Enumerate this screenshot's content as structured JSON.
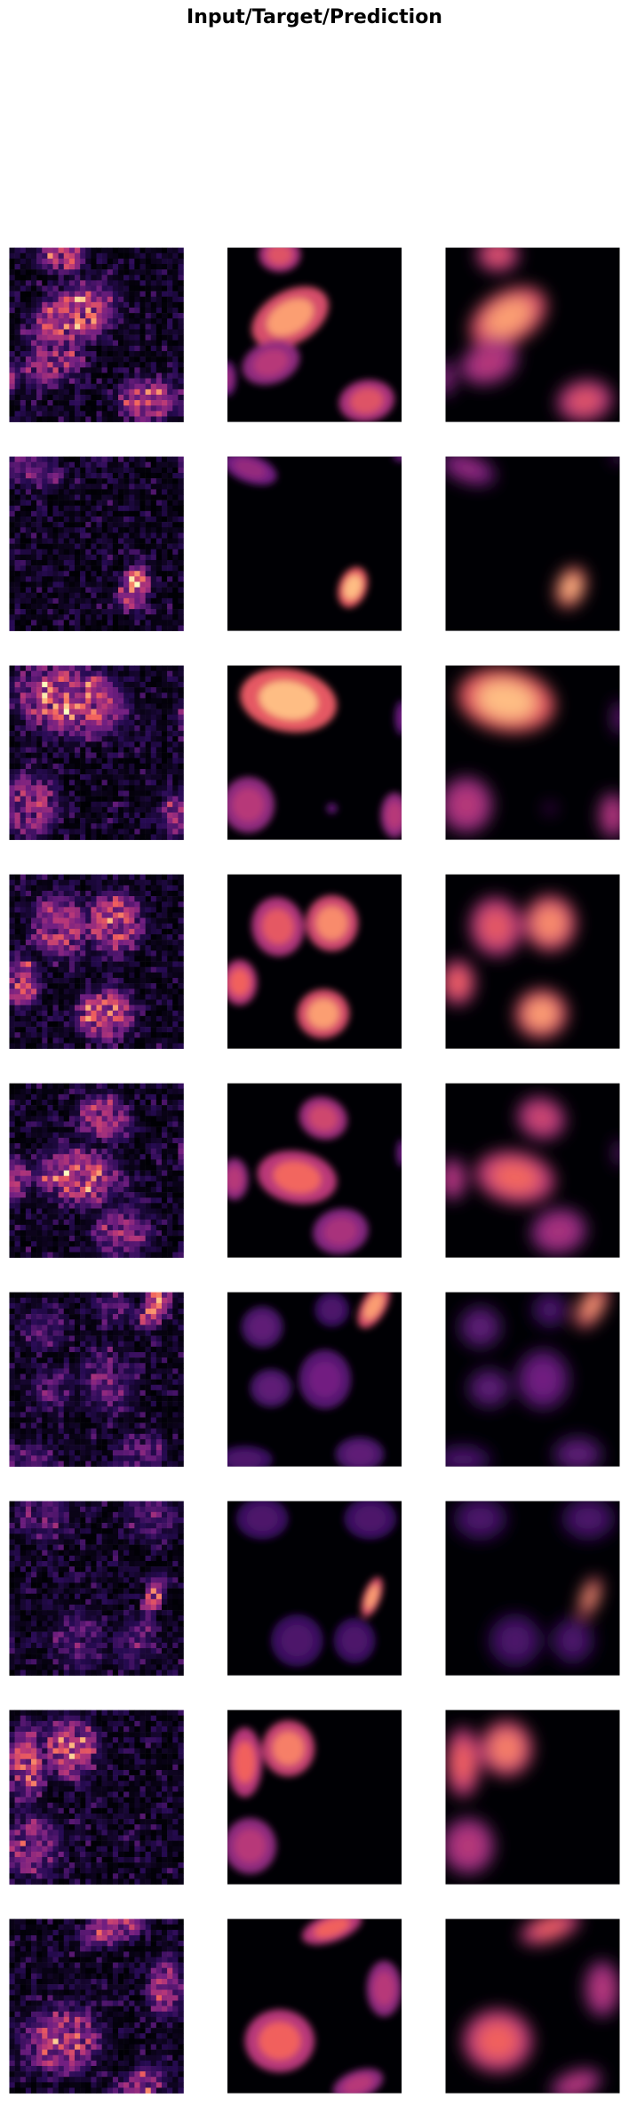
{
  "title": "Input/Target/Prediction"
}
